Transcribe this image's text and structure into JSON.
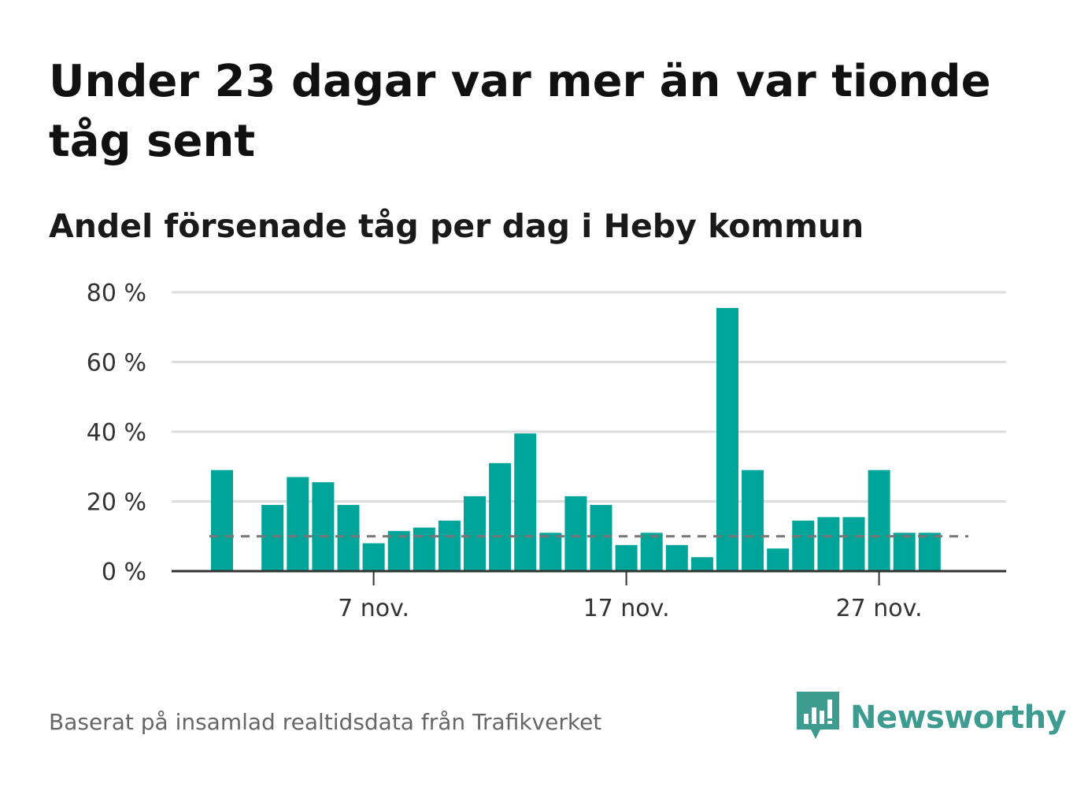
{
  "header": {
    "title": "Under 23 dagar var mer än var tionde tåg sent",
    "subtitle": "Andel försenade tåg per dag i Heby kommun"
  },
  "footer": {
    "source": "Baserat på insamlad realtidsdata från Trafikverket",
    "brand": "Newsworthy"
  },
  "colors": {
    "bar": "#00a59a",
    "grid": "#dddddd",
    "axis": "#333333",
    "reference_line": "#777777",
    "brand": "#3d9b8f"
  },
  "icons": {
    "brand_logo": "bar-chart-speech-bubble-icon"
  },
  "chart_data": {
    "type": "bar",
    "title": "Andel försenade tåg per dag i Heby kommun",
    "xlabel": "",
    "ylabel": "",
    "x": [
      "1 nov.",
      "2 nov.",
      "3 nov.",
      "4 nov.",
      "5 nov.",
      "6 nov.",
      "7 nov.",
      "8 nov.",
      "9 nov.",
      "10 nov.",
      "11 nov.",
      "12 nov.",
      "13 nov.",
      "14 nov.",
      "15 nov.",
      "16 nov.",
      "17 nov.",
      "18 nov.",
      "19 nov.",
      "20 nov.",
      "21 nov.",
      "22 nov.",
      "23 nov.",
      "24 nov.",
      "25 nov.",
      "26 nov.",
      "27 nov.",
      "28 nov.",
      "29 nov.",
      "30 nov."
    ],
    "values": [
      29,
      null,
      19,
      27,
      25.5,
      19,
      8,
      11.5,
      12.5,
      14.5,
      21.5,
      31,
      39.5,
      11,
      21.5,
      19,
      7.5,
      11,
      7.5,
      4,
      75.5,
      29,
      6.5,
      14.5,
      15.5,
      15.5,
      29,
      11,
      11,
      null
    ],
    "ylim": [
      0,
      80
    ],
    "yticks": [
      0,
      20,
      40,
      60,
      80
    ],
    "ytick_labels": [
      "0 %",
      "20 %",
      "40 %",
      "60 %",
      "80 %"
    ],
    "xticks": [
      "7 nov.",
      "17 nov.",
      "27 nov."
    ],
    "reference_line": {
      "value": 10,
      "style": "dashed"
    },
    "grid": true,
    "legend": "none"
  }
}
